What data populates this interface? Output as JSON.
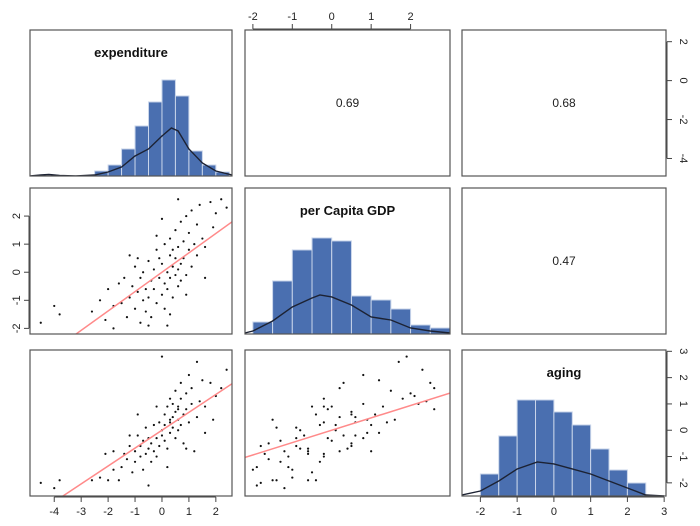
{
  "chart_data": {
    "type": "scatter-matrix",
    "variables": [
      {
        "name": "expenditure",
        "lim": [
          -4.9,
          2.6
        ]
      },
      {
        "name": "per Capita GDP",
        "lim": [
          -2.2,
          3.0
        ]
      },
      {
        "name": "aging",
        "lim": [
          -2.5,
          3.05
        ]
      }
    ],
    "correlations": [
      {
        "row": 0,
        "col": 1,
        "label": "0.69"
      },
      {
        "row": 0,
        "col": 2,
        "label": "0.68"
      },
      {
        "row": 1,
        "col": 2,
        "label": "0.47"
      }
    ],
    "histograms": [
      {
        "bin_start": -2.5,
        "bin_width": 0.5,
        "counts": [
          5,
          11,
          27,
          50,
          74,
          96,
          80,
          25,
          11,
          4
        ],
        "density": [
          [
            -4.9,
            0
          ],
          [
            -4.5,
            1
          ],
          [
            -4.2,
            1.5
          ],
          [
            -3.8,
            0.5
          ],
          [
            -3.2,
            0
          ],
          [
            -2.5,
            1
          ],
          [
            -2,
            4
          ],
          [
            -1.5,
            9
          ],
          [
            -1,
            20
          ],
          [
            -0.5,
            27
          ],
          [
            0,
            40
          ],
          [
            0.35,
            48
          ],
          [
            0.6,
            45
          ],
          [
            1,
            27
          ],
          [
            1.5,
            13
          ],
          [
            2,
            5
          ],
          [
            2.6,
            1
          ]
        ]
      },
      {
        "bin_start": -2.0,
        "bin_width": 0.5,
        "counts": [
          12,
          53,
          84,
          96,
          93,
          38,
          34,
          25,
          9,
          6
        ],
        "density": [
          [
            -2.2,
            1
          ],
          [
            -2,
            3
          ],
          [
            -1.5,
            13
          ],
          [
            -1,
            27
          ],
          [
            -0.5,
            36
          ],
          [
            -0.3,
            39
          ],
          [
            0,
            37
          ],
          [
            0.5,
            29
          ],
          [
            1,
            17
          ],
          [
            1.5,
            14
          ],
          [
            2,
            6
          ],
          [
            2.5,
            3
          ],
          [
            3,
            1
          ]
        ]
      },
      {
        "bin_start": -2.0,
        "bin_width": 0.5,
        "counts": [
          22,
          60,
          96,
          96,
          84,
          71,
          47,
          26,
          13
        ],
        "density": [
          [
            -2.5,
            1
          ],
          [
            -2,
            5
          ],
          [
            -1.5,
            15
          ],
          [
            -1,
            27
          ],
          [
            -0.45,
            34
          ],
          [
            0,
            32
          ],
          [
            0.5,
            27
          ],
          [
            1,
            22
          ],
          [
            1.5,
            15
          ],
          [
            2,
            8
          ],
          [
            2.5,
            1
          ],
          [
            3,
            0
          ]
        ]
      }
    ],
    "regression_lines": [
      {
        "row": 1,
        "col": 0,
        "slope": 0.69,
        "intercept": 0
      },
      {
        "row": 2,
        "col": 0,
        "slope": 0.68,
        "intercept": 0
      },
      {
        "row": 2,
        "col": 1,
        "slope": 0.47,
        "intercept": 0
      }
    ],
    "axes": {
      "top_col1": [
        -2,
        -1,
        0,
        1,
        2
      ],
      "right_row0": [
        2,
        0,
        -2,
        -4
      ],
      "left_row1": [
        2,
        1,
        0,
        -1,
        -2
      ],
      "right_row2": [
        3,
        2,
        1,
        0,
        -1,
        -2
      ],
      "bottom_col0": [
        -4,
        -3,
        -2,
        -1,
        0,
        1,
        2
      ],
      "bottom_col2": [
        -2,
        -1,
        0,
        1,
        2,
        3
      ]
    },
    "points": [
      [
        -4.5,
        -1.8,
        -2.0
      ],
      [
        -4.0,
        -1.2,
        -2.2
      ],
      [
        -3.8,
        -1.5,
        -1.9
      ],
      [
        -2.6,
        -1.4,
        -1.9
      ],
      [
        -2.3,
        -1.0,
        -1.8
      ],
      [
        -2.0,
        -0.6,
        -1.9
      ],
      [
        -2.1,
        -1.7,
        -0.9
      ],
      [
        -1.8,
        -1.2,
        -0.8
      ],
      [
        -1.6,
        -0.4,
        -1.9
      ],
      [
        -1.5,
        -1.1,
        -1.4
      ],
      [
        -1.4,
        -0.2,
        -0.9
      ],
      [
        -1.3,
        -1.6,
        -1.1
      ],
      [
        -1.2,
        -0.9,
        -0.6
      ],
      [
        -1.1,
        -0.5,
        -1.6
      ],
      [
        -1.0,
        0.2,
        -0.8
      ],
      [
        -1.0,
        -1.3,
        -1.2
      ],
      [
        -0.9,
        -0.7,
        -0.2
      ],
      [
        -0.9,
        0.5,
        0.6
      ],
      [
        -0.8,
        -1.8,
        -0.6
      ],
      [
        -0.8,
        -0.2,
        -1.0
      ],
      [
        -0.7,
        -1.0,
        -1.5
      ],
      [
        -0.7,
        0.0,
        -0.4
      ],
      [
        -0.6,
        -0.6,
        -0.9
      ],
      [
        -0.6,
        -1.4,
        0.1
      ],
      [
        -0.5,
        0.4,
        -0.7
      ],
      [
        -0.5,
        -0.9,
        -0.3
      ],
      [
        -0.4,
        -0.3,
        -1.2
      ],
      [
        -0.4,
        -1.6,
        -0.5
      ],
      [
        -0.3,
        0.1,
        0.2
      ],
      [
        -0.3,
        -0.6,
        -0.8
      ],
      [
        -0.2,
        0.8,
        -0.3
      ],
      [
        -0.2,
        -1.1,
        -1.0
      ],
      [
        -0.1,
        -0.2,
        0.3
      ],
      [
        -0.1,
        0.5,
        -0.6
      ],
      [
        0.0,
        -0.8,
        0.0
      ],
      [
        0.0,
        0.3,
        -0.2
      ],
      [
        0.1,
        -0.4,
        0.6
      ],
      [
        0.1,
        1.0,
        0.2
      ],
      [
        0.1,
        -1.3,
        -0.4
      ],
      [
        0.2,
        0.0,
        0.9
      ],
      [
        0.2,
        -0.6,
        -0.7
      ],
      [
        0.3,
        0.6,
        0.3
      ],
      [
        0.3,
        -0.2,
        1.2
      ],
      [
        0.3,
        1.2,
        -0.1
      ],
      [
        0.4,
        0.2,
        0.5
      ],
      [
        0.4,
        -0.9,
        0.1
      ],
      [
        0.4,
        0.8,
        1.0
      ],
      [
        0.5,
        -0.1,
        -0.3
      ],
      [
        0.5,
        0.5,
        0.7
      ],
      [
        0.5,
        1.5,
        1.5
      ],
      [
        0.6,
        0.1,
        0.0
      ],
      [
        0.6,
        -0.5,
        0.9
      ],
      [
        0.6,
        0.9,
        0.4
      ],
      [
        0.7,
        1.8,
        1.2
      ],
      [
        0.7,
        0.3,
        1.8
      ],
      [
        0.7,
        -0.3,
        0.2
      ],
      [
        0.8,
        1.1,
        0.6
      ],
      [
        0.8,
        0.5,
        -0.5
      ],
      [
        0.9,
        2.0,
        1.4
      ],
      [
        0.9,
        -0.1,
        0.8
      ],
      [
        1.0,
        0.8,
        2.1
      ],
      [
        1.0,
        1.4,
        0.3
      ],
      [
        1.1,
        2.2,
        1.0
      ],
      [
        1.1,
        0.2,
        1.6
      ],
      [
        1.2,
        1.0,
        -0.8
      ],
      [
        1.3,
        1.7,
        2.6
      ],
      [
        1.3,
        0.6,
        0.5
      ],
      [
        1.4,
        2.4,
        1.1
      ],
      [
        1.5,
        1.2,
        1.9
      ],
      [
        1.6,
        0.9,
        -0.1
      ],
      [
        1.8,
        2.5,
        1.8
      ],
      [
        1.9,
        1.6,
        0.4
      ],
      [
        2.0,
        2.1,
        1.3
      ],
      [
        2.2,
        2.6,
        1.6
      ],
      [
        2.4,
        2.3,
        2.3
      ],
      [
        0.2,
        -1.9,
        -1.4
      ],
      [
        -0.5,
        -1.9,
        -2.1
      ],
      [
        -1.8,
        -2.0,
        -1.5
      ],
      [
        0.6,
        2.6,
        0.8
      ],
      [
        0.0,
        1.9,
        2.8
      ],
      [
        -0.2,
        1.3,
        0.9
      ],
      [
        0.9,
        -0.8,
        -0.7
      ],
      [
        -1.2,
        0.6,
        -0.2
      ],
      [
        0.3,
        -1.5,
        0.4
      ],
      [
        1.6,
        -0.2,
        0.9
      ]
    ],
    "colors": {
      "bar": "#4a6fb0",
      "bar_border": "#c9d5ea",
      "density": "#1c2233",
      "regression": "#ff8a8a",
      "point": "#111111",
      "frame": "#555555"
    }
  }
}
